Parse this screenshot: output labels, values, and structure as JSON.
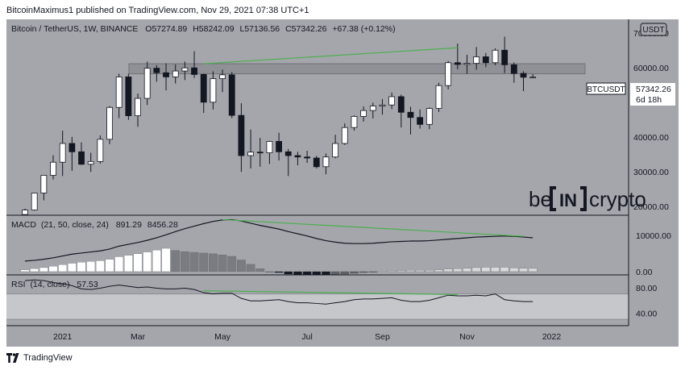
{
  "header": {
    "author": "BitcoinMaximus1",
    "published_text": "published on TradingView.com, Nov 29, 2021 07:38 UTC+1"
  },
  "legend": {
    "symbol": "Bitcoin / TetherUS, 1W, BINANCE",
    "open_label": "O",
    "open": "57274.89",
    "high_label": "H",
    "high": "58242.09",
    "low_label": "L",
    "low": "57136.56",
    "close_label": "C",
    "close": "57342.26",
    "change": "+67.38 (+0.12%)"
  },
  "currency_badge": "USDT",
  "price_tag": {
    "symbol": "BTCUSDT",
    "price": "57342.26",
    "countdown": "6d 18h"
  },
  "watermark": {
    "brand_left": "be",
    "brand_mid": "IN",
    "brand_right": "crypto"
  },
  "colors": {
    "background": "#a4a6ab",
    "up_candle": "#ffffff",
    "down_candle": "#131722",
    "trendline": "#4caf50",
    "line": "#131722",
    "rsi_band": "#c5c7cb",
    "pane_border": "#131722"
  },
  "footer": {
    "brand": "TradingView"
  },
  "chart_data": [
    {
      "type": "candlestick",
      "pane": "price",
      "y_ticks": [
        "70000.00",
        "60000.00",
        "50000.00",
        "40000.00",
        "30000.00",
        "20000.00"
      ],
      "ylim": [
        17500,
        74000
      ],
      "x_labels": [
        "2021",
        "Mar",
        "May",
        "Jul",
        "Sep",
        "Nov",
        "2022"
      ],
      "x_label_weeks": [
        4,
        12,
        21,
        30,
        38,
        47,
        56
      ],
      "horizontal_zone": [
        58300,
        61200
      ],
      "trendline": {
        "from": [
          19,
          61200
        ],
        "to": [
          46,
          65800
        ]
      },
      "candles": [
        {
          "o": 17700,
          "h": 19400,
          "l": 17500,
          "c": 19000
        },
        {
          "o": 19000,
          "h": 24000,
          "l": 18800,
          "c": 23900
        },
        {
          "o": 23900,
          "h": 29000,
          "l": 21800,
          "c": 29000
        },
        {
          "o": 29000,
          "h": 34800,
          "l": 27800,
          "c": 32800
        },
        {
          "o": 32800,
          "h": 41900,
          "l": 28800,
          "c": 38200
        },
        {
          "o": 38200,
          "h": 40100,
          "l": 30300,
          "c": 35800
        },
        {
          "o": 35800,
          "h": 38500,
          "l": 32000,
          "c": 32200
        },
        {
          "o": 32200,
          "h": 35500,
          "l": 30000,
          "c": 33000
        },
        {
          "o": 33000,
          "h": 40500,
          "l": 32400,
          "c": 39400
        },
        {
          "o": 39400,
          "h": 49000,
          "l": 38000,
          "c": 48600
        },
        {
          "o": 48600,
          "h": 58300,
          "l": 45500,
          "c": 57400
        },
        {
          "o": 57400,
          "h": 58300,
          "l": 45000,
          "c": 46200
        },
        {
          "o": 46200,
          "h": 52600,
          "l": 43000,
          "c": 51200
        },
        {
          "o": 51200,
          "h": 61800,
          "l": 49300,
          "c": 59900
        },
        {
          "o": 59900,
          "h": 60800,
          "l": 56000,
          "c": 58600
        },
        {
          "o": 58600,
          "h": 61300,
          "l": 53500,
          "c": 57400
        },
        {
          "o": 57400,
          "h": 61000,
          "l": 55500,
          "c": 59100
        },
        {
          "o": 59100,
          "h": 61800,
          "l": 56500,
          "c": 60000
        },
        {
          "o": 60000,
          "h": 64800,
          "l": 57100,
          "c": 58100
        },
        {
          "o": 58100,
          "h": 58300,
          "l": 47000,
          "c": 50100
        },
        {
          "o": 50100,
          "h": 59000,
          "l": 48000,
          "c": 56900
        },
        {
          "o": 56900,
          "h": 59500,
          "l": 53000,
          "c": 58000
        },
        {
          "o": 58000,
          "h": 58800,
          "l": 45500,
          "c": 46300
        },
        {
          "o": 46300,
          "h": 49800,
          "l": 30000,
          "c": 34700
        },
        {
          "o": 34700,
          "h": 42200,
          "l": 31000,
          "c": 35700
        },
        {
          "o": 35700,
          "h": 39800,
          "l": 31500,
          "c": 35500
        },
        {
          "o": 35500,
          "h": 39000,
          "l": 32300,
          "c": 38800
        },
        {
          "o": 38800,
          "h": 41300,
          "l": 33300,
          "c": 35800
        },
        {
          "o": 35800,
          "h": 36600,
          "l": 28800,
          "c": 34700
        },
        {
          "o": 34700,
          "h": 35800,
          "l": 31900,
          "c": 34300
        },
        {
          "o": 34300,
          "h": 36100,
          "l": 32600,
          "c": 34000
        },
        {
          "o": 34000,
          "h": 34600,
          "l": 31000,
          "c": 31500
        },
        {
          "o": 31500,
          "h": 35300,
          "l": 29300,
          "c": 34300
        },
        {
          "o": 34300,
          "h": 40700,
          "l": 33900,
          "c": 38200
        },
        {
          "o": 38200,
          "h": 44000,
          "l": 37800,
          "c": 42800
        },
        {
          "o": 42800,
          "h": 46300,
          "l": 41900,
          "c": 46000
        },
        {
          "o": 46000,
          "h": 48900,
          "l": 44500,
          "c": 47700
        },
        {
          "o": 47700,
          "h": 50000,
          "l": 45400,
          "c": 49000
        },
        {
          "o": 49000,
          "h": 51000,
          "l": 46500,
          "c": 49300
        },
        {
          "o": 49300,
          "h": 52900,
          "l": 48100,
          "c": 51700
        },
        {
          "o": 51700,
          "h": 52300,
          "l": 42800,
          "c": 47200
        },
        {
          "o": 47200,
          "h": 48800,
          "l": 40800,
          "c": 45700
        },
        {
          "o": 45700,
          "h": 48000,
          "l": 42500,
          "c": 43700
        },
        {
          "o": 43700,
          "h": 48600,
          "l": 42300,
          "c": 48300
        },
        {
          "o": 48300,
          "h": 55700,
          "l": 47300,
          "c": 54900
        },
        {
          "o": 54900,
          "h": 62000,
          "l": 53800,
          "c": 61500
        },
        {
          "o": 61500,
          "h": 67000,
          "l": 59600,
          "c": 61000
        },
        {
          "o": 61000,
          "h": 63800,
          "l": 58300,
          "c": 61300
        },
        {
          "o": 61300,
          "h": 66000,
          "l": 59500,
          "c": 63200
        },
        {
          "o": 63200,
          "h": 64300,
          "l": 60200,
          "c": 61500
        },
        {
          "o": 61500,
          "h": 65600,
          "l": 60800,
          "c": 65100
        },
        {
          "o": 65100,
          "h": 69000,
          "l": 58500,
          "c": 60900
        },
        {
          "o": 60900,
          "h": 61600,
          "l": 55700,
          "c": 58400
        },
        {
          "o": 58400,
          "h": 59000,
          "l": 53300,
          "c": 57300
        },
        {
          "o": 57300,
          "h": 58200,
          "l": 57100,
          "c": 57342
        }
      ]
    },
    {
      "type": "line+histogram",
      "pane": "macd",
      "indicator": "MACD",
      "params": "(21, 50, close, 24)",
      "value_1": "891.29",
      "value_2": "8456.28",
      "y_ticks": [
        "10000.00",
        "0.00"
      ],
      "ylim": [
        -900,
        15500
      ],
      "macd": [
        2900,
        3100,
        3400,
        3800,
        4300,
        4800,
        5100,
        5400,
        5700,
        6200,
        7000,
        7500,
        8000,
        8600,
        9300,
        10100,
        11000,
        11800,
        12500,
        13200,
        13800,
        14200,
        14300,
        13900,
        13300,
        12700,
        12200,
        11700,
        11000,
        10400,
        9800,
        9100,
        8500,
        8100,
        7800,
        7700,
        7700,
        7800,
        8000,
        8200,
        8300,
        8400,
        8400,
        8500,
        8700,
        8900,
        9100,
        9300,
        9500,
        9600,
        9700,
        9800,
        9700,
        9500,
        9300
      ],
      "histogram": [
        500,
        800,
        1100,
        1500,
        1900,
        2300,
        2600,
        2800,
        3000,
        3400,
        4100,
        4500,
        4900,
        5400,
        5900,
        6400,
        5800,
        5500,
        5300,
        5100,
        4900,
        4600,
        4200,
        3200,
        2000,
        800,
        0,
        -300,
        -700,
        -900,
        -900,
        -900,
        -900,
        -800,
        -700,
        -500,
        -300,
        -100,
        100,
        200,
        300,
        400,
        400,
        400,
        500,
        700,
        800,
        900,
        1100,
        1200,
        1200,
        1200,
        1000,
        900,
        891
      ],
      "trendline": {
        "from": [
          21,
          14300
        ],
        "to": [
          53,
          9700
        ]
      }
    },
    {
      "type": "line",
      "pane": "rsi",
      "indicator": "RSI",
      "params": "(14, close)",
      "value": "57.53",
      "y_ticks": [
        "80.00",
        "40.00"
      ],
      "band": [
        30,
        70
      ],
      "ylim": [
        20,
        100
      ],
      "rsi": [
        91,
        92,
        91,
        88,
        86,
        83,
        78,
        77,
        79,
        82,
        84,
        82,
        80,
        81,
        79,
        78,
        78,
        79,
        77,
        72,
        70,
        71,
        71,
        63,
        59,
        59,
        60,
        61,
        58,
        56,
        56,
        55,
        54,
        56,
        58,
        61,
        62,
        62,
        63,
        64,
        60,
        58,
        58,
        60,
        64,
        68,
        67,
        67,
        68,
        67,
        70,
        61,
        59,
        58,
        58
      ],
      "trendline": {
        "from": [
          19,
          75
        ],
        "to": [
          46,
          69
        ]
      }
    }
  ]
}
